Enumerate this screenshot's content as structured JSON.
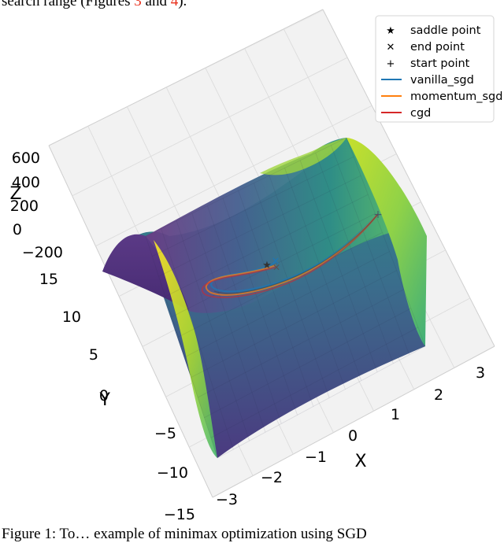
{
  "header_text": {
    "prefix": "search range (Figures ",
    "ref1": "3",
    "mid": " and ",
    "ref2": "4",
    "suffix": ")."
  },
  "caption_text": "Figure 1:  To… example of minimax optimization using SGD",
  "chart_data": {
    "type": "surface",
    "surface_function": "z = 20*x^2 - 3*y^2 (saddle surface)",
    "colormap": "viridis",
    "xlabel": "X",
    "ylabel": "Y",
    "zlabel": "Z",
    "x_ticks": [
      "−3",
      "−2",
      "−1",
      "0",
      "1",
      "2",
      "3"
    ],
    "y_ticks": [
      "−15",
      "−10",
      "−5",
      "0",
      "5",
      "10",
      "15"
    ],
    "z_ticks": [
      "600",
      "400",
      "200",
      "0",
      "−200"
    ],
    "xlim": [
      -3,
      3
    ],
    "ylim": [
      -15,
      15
    ],
    "zlim": [
      -250,
      650
    ],
    "grid": true,
    "legend_position": "top-right",
    "legend": [
      {
        "label": "saddle point",
        "marker": "star"
      },
      {
        "label": "end point",
        "marker": "x"
      },
      {
        "label": "start point",
        "marker": "plus"
      },
      {
        "label": "vanilla_sgd",
        "line_color": "#1f77b4"
      },
      {
        "label": "momentum_sgd",
        "line_color": "#ff7f0e"
      },
      {
        "label": "cgd",
        "line_color": "#d62728"
      }
    ],
    "points": {
      "saddle_point": {
        "x": 0,
        "y": 0,
        "z": 0
      },
      "start_point": {
        "x": 2.5,
        "y": 5,
        "z": 50
      },
      "end_points": [
        {
          "series": "vanilla_sgd",
          "x": 0.1,
          "y": 0.5
        },
        {
          "series": "momentum_sgd",
          "x": 0.05,
          "y": -0.3
        }
      ]
    },
    "series": [
      {
        "name": "vanilla_sgd",
        "color": "#1f77b4"
      },
      {
        "name": "momentum_sgd",
        "color": "#ff7f0e"
      },
      {
        "name": "cgd",
        "color": "#d62728"
      }
    ]
  }
}
